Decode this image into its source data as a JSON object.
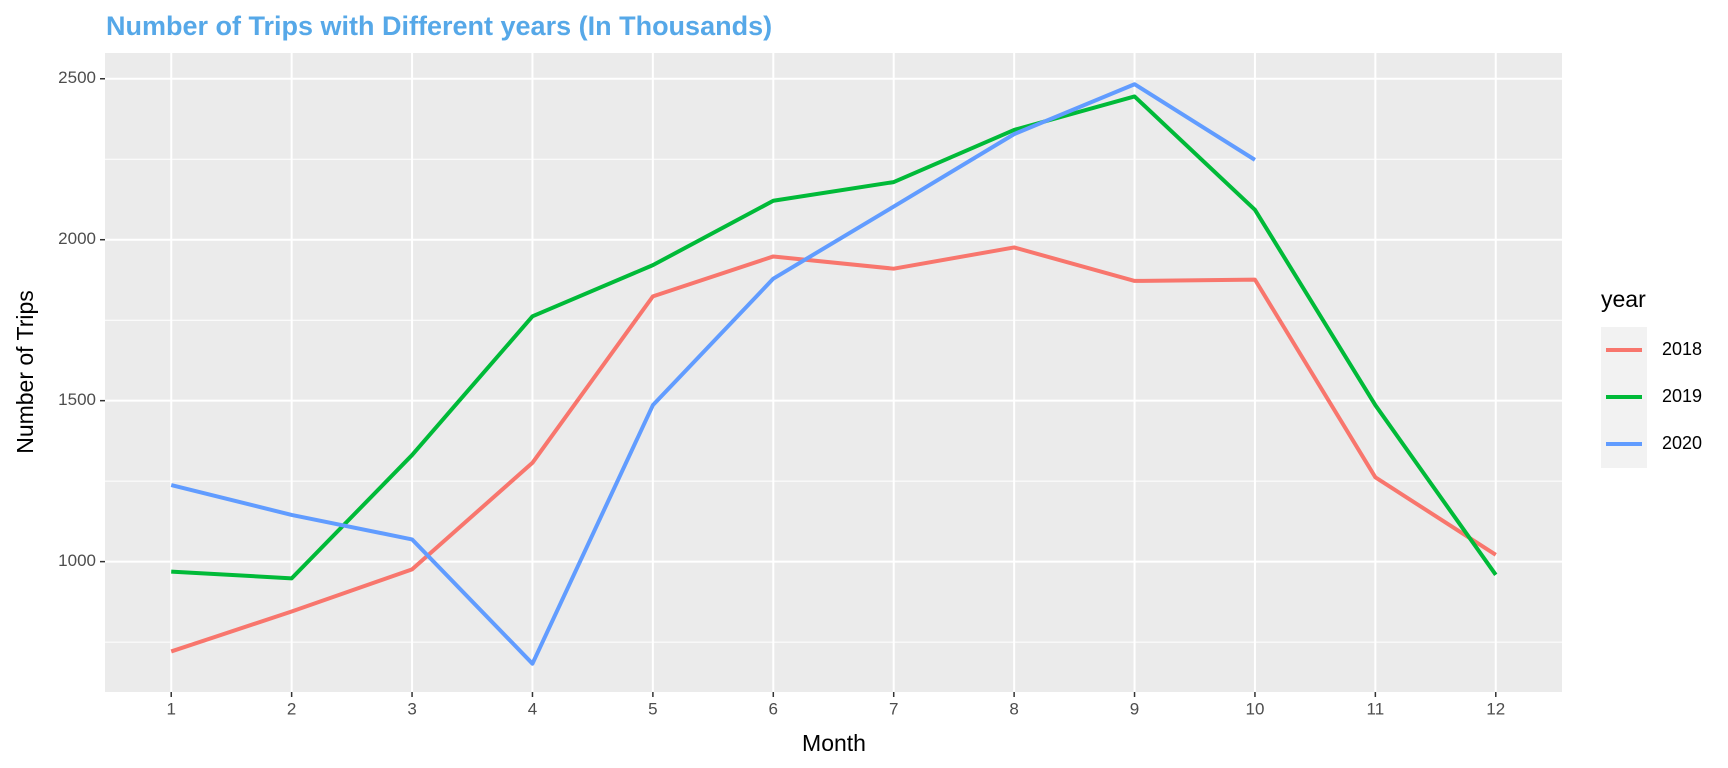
{
  "chart_data": {
    "type": "line",
    "title": "Number of Trips with Different years (In Thousands)",
    "x_label": "Month",
    "y_label": "Number of Trips",
    "legend_title": "year",
    "legend_position": "right",
    "x": [
      1,
      2,
      3,
      4,
      5,
      6,
      7,
      8,
      9,
      10,
      11,
      12
    ],
    "series": [
      {
        "name": "2018",
        "color": "#F8766D",
        "values": [
          721,
          845,
          976,
          1307,
          1824,
          1948,
          1910,
          1976,
          1872,
          1876,
          1262,
          1021
        ]
      },
      {
        "name": "2019",
        "color": "#00BA38",
        "values": [
          969,
          948,
          1331,
          1762,
          1921,
          2121,
          2179,
          2341,
          2445,
          2093,
          1486,
          959
        ]
      },
      {
        "name": "2020",
        "color": "#619CFF",
        "values": [
          1238,
          1145,
          1069,
          683,
          1486,
          1879,
          2103,
          2328,
          2483,
          2248,
          null,
          null
        ]
      }
    ],
    "xlim": [
      0.45,
      12.55
    ],
    "xticks": [
      1,
      2,
      3,
      4,
      5,
      6,
      7,
      8,
      9,
      10,
      11,
      12
    ],
    "ylim": [
      595,
      2580
    ],
    "yticks": [
      1000,
      1500,
      2000,
      2500
    ],
    "y_minor_ticks": [
      750,
      1250,
      1750,
      2250
    ],
    "grid": true
  }
}
